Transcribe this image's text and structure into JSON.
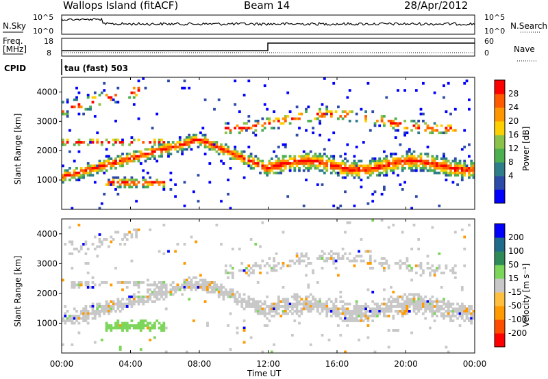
{
  "header": {
    "station": "Wallops Island (fitACF)",
    "beam": "Beam 14",
    "date": "28/Apr/2012"
  },
  "strip_labels": {
    "nsky": "N.Sky",
    "nsky_top": "10^5",
    "nsky_bottom": "10^0",
    "nsearch": "N.Search",
    "nsearch_top": "10^5",
    "nsearch_bottom": "10^0",
    "freq": "Freq.",
    "freq_unit": "[MHz]",
    "freq_top": "18",
    "freq_bottom": "8",
    "nave": "Nave",
    "nave_top": "60",
    "nave_bottom": "0",
    "cpid": "CPID",
    "cpid_value": "tau (fast) 503"
  },
  "chart_data": [
    {
      "type": "heatmap",
      "name": "power",
      "ylabel": "Slant Range [km]",
      "y_ticks": [
        "1000",
        "2000",
        "3000",
        "4000"
      ],
      "colorbar_label": "Power [dB]",
      "colorbar_ticks": [
        "28",
        "24",
        "20",
        "16",
        "12",
        "8",
        "4"
      ],
      "colors": [
        "#0000ff",
        "#2c4ba8",
        "#2e7d8a",
        "#4caf50",
        "#8bc34a",
        "#ffd000",
        "#ff9800",
        "#ff5a00",
        "#ff0000"
      ],
      "ylim": [
        0,
        4500
      ],
      "xlim_hours": [
        0,
        24
      ]
    },
    {
      "type": "heatmap",
      "name": "velocity",
      "ylabel": "Slant Range [km]",
      "y_ticks": [
        "1000",
        "2000",
        "3000",
        "4000"
      ],
      "colorbar_label": "Velocity [m s⁻¹]",
      "colorbar_ticks": [
        "200",
        "100",
        "50",
        "15",
        "-15",
        "-50",
        "-100",
        "-200"
      ],
      "colors": [
        "#ff0000",
        "#ff4d00",
        "#ff9a00",
        "#ffc040",
        "#c8c8c8",
        "#7cd65a",
        "#2e8b57",
        "#1f6b8a",
        "#0000ff"
      ],
      "ylim": [
        0,
        4500
      ],
      "xlim_hours": [
        0,
        24
      ]
    }
  ],
  "x_axis": {
    "label": "Time UT",
    "ticks": [
      "00:00",
      "04:00",
      "08:00",
      "12:00",
      "16:00",
      "20:00",
      "00:00"
    ]
  }
}
